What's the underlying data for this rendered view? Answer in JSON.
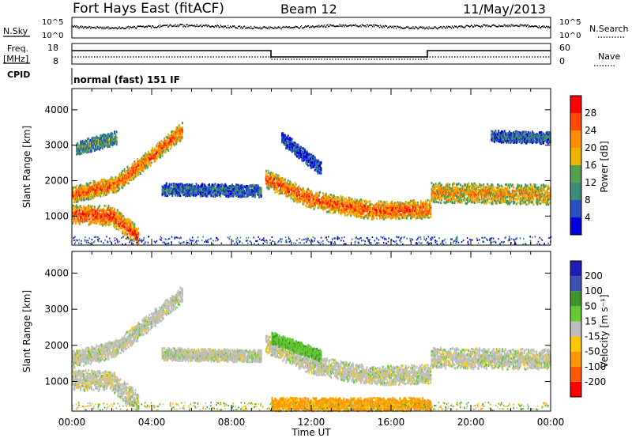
{
  "header": {
    "title": "Fort Hays East (fitACF)",
    "beam": "Beam 12",
    "date": "11/May/2013"
  },
  "sky_panel": {
    "left_label": "N.Sky",
    "right_label": "N.Search",
    "ticks_left": [
      "10^5",
      "10^0"
    ],
    "ticks_right": [
      "10^5",
      "10^0"
    ]
  },
  "freq_panel": {
    "left_label_line1": "Freq.",
    "left_label_line2": "[MHz]",
    "right_label": "Nave",
    "ticks_left": [
      "18",
      "8"
    ],
    "ticks_right": [
      "60",
      "0"
    ]
  },
  "cpid_panel": {
    "label": "CPID",
    "text": "normal (fast) 151 IF"
  },
  "colors": {
    "power_scale": [
      "#0000d8",
      "#2850c0",
      "#3c8c78",
      "#50a050",
      "#f0b400",
      "#ff8c00",
      "#ff4a00",
      "#ff0000"
    ],
    "velocity_scale": [
      "#ff0000",
      "#ff5a00",
      "#ff9600",
      "#ffc800",
      "#bebebe",
      "#64c830",
      "#3c9628",
      "#3c50b4",
      "#1e1eb4"
    ]
  },
  "chart_data": [
    {
      "type": "heatmap",
      "name": "power",
      "ylabel": "Slant Range [km]",
      "xlim": [
        "00:00",
        "24:00"
      ],
      "ylim": [
        180,
        4600
      ],
      "yticks": [
        1000,
        2000,
        3000,
        4000
      ],
      "colorbar": {
        "label": "Power [dB]",
        "range": [
          0,
          32
        ],
        "ticks": [
          4,
          8,
          12,
          16,
          20,
          24,
          28
        ]
      },
      "echo_bands": [
        {
          "t": [
            0.0,
            2.2,
            4.0,
            5.5
          ],
          "range": [
            1600,
            1900,
            2700,
            3400
          ],
          "width": 220,
          "intensity": 24
        },
        {
          "t": [
            0.0,
            2.0,
            3.3
          ],
          "range": [
            1050,
            1000,
            400
          ],
          "width": 260,
          "intensity": 26
        },
        {
          "t": [
            0.2,
            2.2
          ],
          "range": [
            2900,
            3200
          ],
          "width": 180,
          "intensity": 12
        },
        {
          "t": [
            4.5,
            9.5
          ],
          "range": [
            1750,
            1700
          ],
          "width": 160,
          "intensity": 8
        },
        {
          "t": [
            9.7,
            12.0,
            15.0,
            18.0
          ],
          "range": [
            2050,
            1450,
            1150,
            1200
          ],
          "width": 240,
          "intensity": 25
        },
        {
          "t": [
            18.0,
            24.0
          ],
          "range": [
            1650,
            1600
          ],
          "width": 260,
          "intensity": 21
        },
        {
          "t": [
            10.5,
            12.5
          ],
          "range": [
            3200,
            2300
          ],
          "width": 180,
          "intensity": 6
        },
        {
          "t": [
            21.0,
            24.0
          ],
          "range": [
            3250,
            3200
          ],
          "width": 150,
          "intensity": 8
        }
      ],
      "mode_changes": [
        "10:00",
        "18:00"
      ]
    },
    {
      "type": "heatmap",
      "name": "velocity",
      "xlabel": "Time UT",
      "ylabel": "Slant Range [km]",
      "xlim": [
        "00:00",
        "24:00"
      ],
      "ylim": [
        180,
        4600
      ],
      "xticks": [
        "00:00",
        "04:00",
        "08:00",
        "12:00",
        "16:00",
        "20:00",
        "00:00"
      ],
      "yticks": [
        1000,
        2000,
        3000,
        4000
      ],
      "colorbar": {
        "label": "Velocity [m s⁻¹]",
        "range": [
          -250,
          250
        ],
        "ticks": [
          200,
          100,
          50,
          15,
          -15,
          -50,
          -100,
          -200
        ]
      },
      "echo_bands": [
        {
          "t": [
            0.0,
            2.2,
            4.0,
            5.5
          ],
          "range": [
            1600,
            1900,
            2700,
            3400
          ],
          "width": 220,
          "velocity": 0
        },
        {
          "t": [
            0.0,
            2.0,
            3.3
          ],
          "range": [
            1050,
            1000,
            400
          ],
          "width": 260,
          "velocity": 0
        },
        {
          "t": [
            4.5,
            9.5
          ],
          "range": [
            1750,
            1700
          ],
          "width": 160,
          "velocity": 0
        },
        {
          "t": [
            9.7,
            12.0,
            15.0,
            18.0
          ],
          "range": [
            2050,
            1450,
            1150,
            1200
          ],
          "width": 240,
          "velocity": 0
        },
        {
          "t": [
            18.0,
            24.0
          ],
          "range": [
            1650,
            1600
          ],
          "width": 260,
          "velocity": 0
        },
        {
          "t": [
            10.0,
            12.5
          ],
          "range": [
            2200,
            1700
          ],
          "width": 150,
          "velocity": 40
        },
        {
          "t": [
            10.0,
            18.0
          ],
          "range": [
            350,
            350
          ],
          "width": 180,
          "velocity": -60
        }
      ]
    }
  ]
}
